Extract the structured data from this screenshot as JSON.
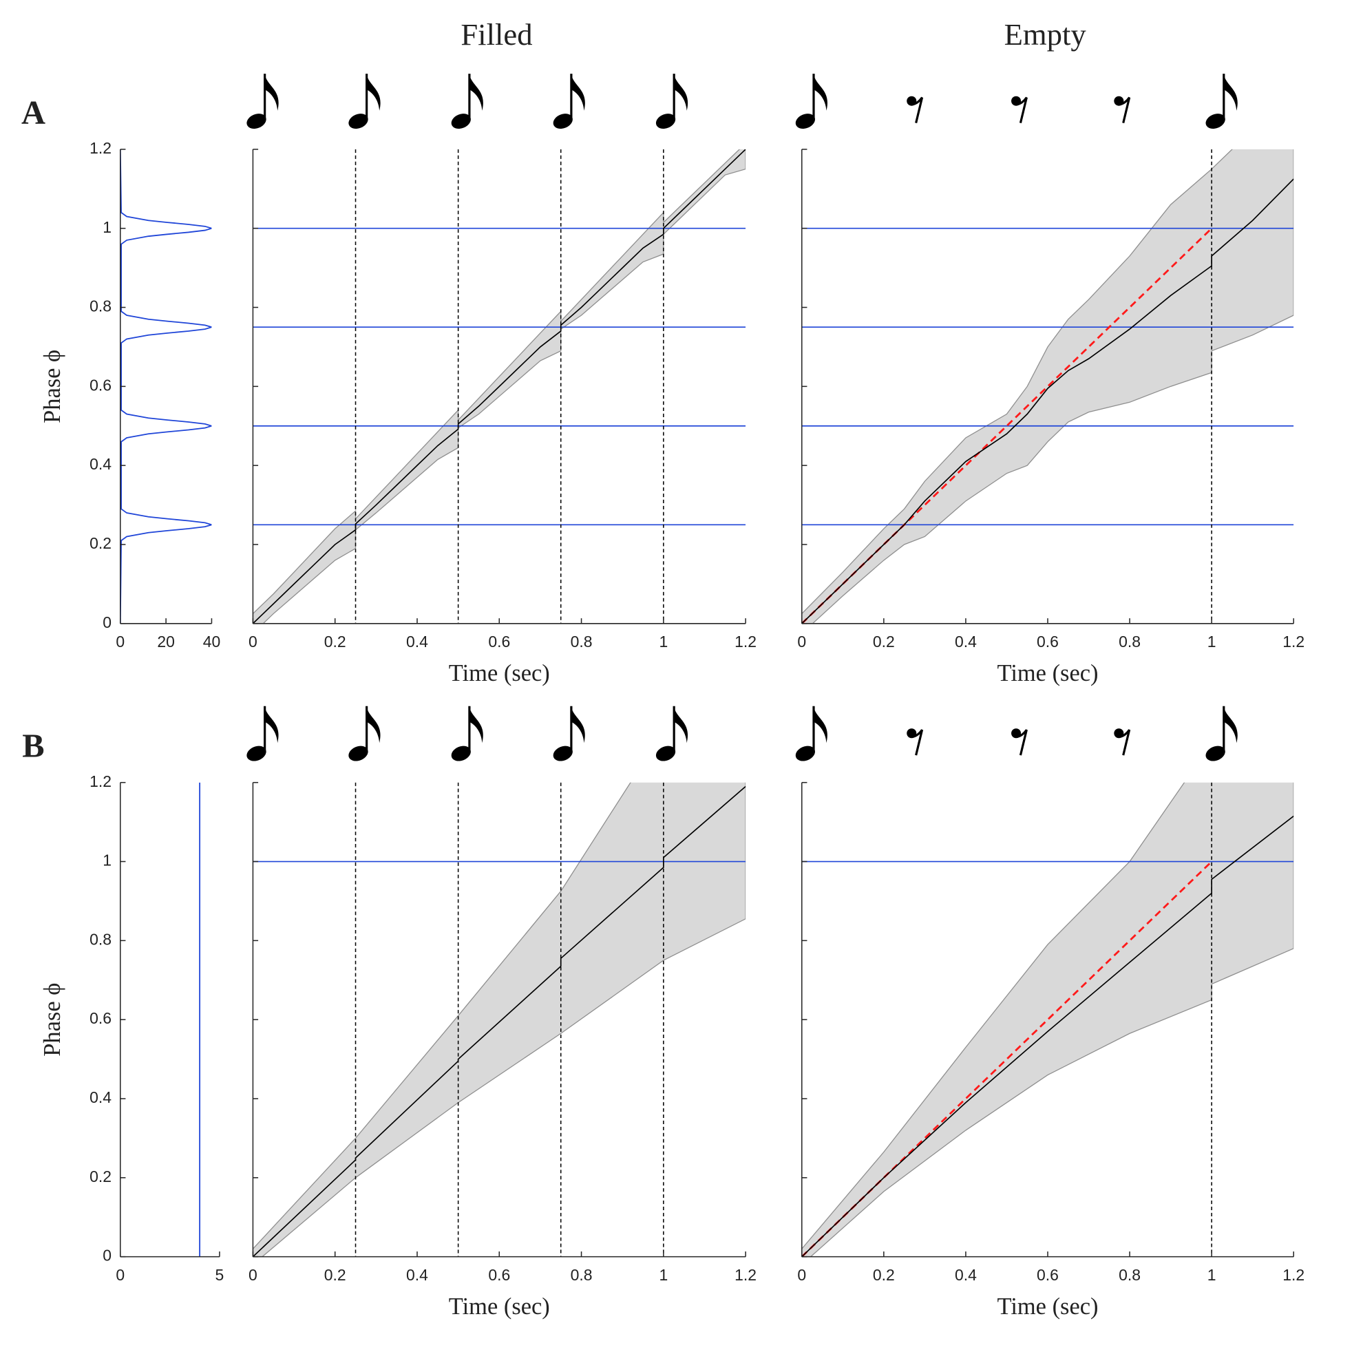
{
  "chart_data": [
    {
      "type": "density",
      "panel_label": "A",
      "ylabel": "Phase ϕ",
      "y": [
        0,
        0.21,
        0.22,
        0.23,
        0.235,
        0.24,
        0.245,
        0.25,
        0.255,
        0.26,
        0.265,
        0.27,
        0.28,
        0.29,
        0.46,
        0.47,
        0.48,
        0.485,
        0.49,
        0.495,
        0.5,
        0.505,
        0.51,
        0.515,
        0.52,
        0.53,
        0.54,
        0.71,
        0.72,
        0.73,
        0.735,
        0.74,
        0.745,
        0.75,
        0.755,
        0.76,
        0.765,
        0.77,
        0.78,
        0.79,
        0.96,
        0.97,
        0.98,
        0.985,
        0.99,
        0.995,
        1,
        1.005,
        1.01,
        1.015,
        1.02,
        1.03,
        1.04,
        1.2
      ],
      "values": [
        0,
        0.4,
        2.8,
        12.3,
        20.6,
        29.8,
        37.1,
        40,
        37.1,
        29.8,
        20.6,
        12.3,
        2.8,
        0.4,
        0.4,
        2.8,
        12.3,
        20.6,
        29.8,
        37.1,
        40,
        37.1,
        29.8,
        20.6,
        12.3,
        2.8,
        0.4,
        0.4,
        2.8,
        12.3,
        20.6,
        29.8,
        37.1,
        40,
        37.1,
        29.8,
        20.6,
        12.3,
        2.8,
        0.4,
        0.4,
        2.8,
        12.3,
        20.6,
        29.8,
        37.1,
        40,
        37.1,
        29.8,
        20.6,
        12.3,
        2.8,
        0.4,
        0
      ],
      "color": "#1f45d8",
      "xlim": [
        0,
        40
      ],
      "xticks": [
        0,
        20,
        40
      ],
      "ylim": [
        0,
        1.2
      ],
      "yticks": [
        0,
        0.2,
        0.4,
        0.6,
        0.8,
        1,
        1.2
      ]
    },
    {
      "type": "band",
      "title": "Filled",
      "xlabel": "Time (sec)",
      "x": [
        0,
        0.05,
        0.1,
        0.15,
        0.2,
        0.25,
        0.25,
        0.3,
        0.35,
        0.4,
        0.45,
        0.5,
        0.5,
        0.55,
        0.6,
        0.65,
        0.7,
        0.75,
        0.75,
        0.8,
        0.85,
        0.9,
        0.95,
        1,
        1,
        1.05,
        1.1,
        1.15,
        1.2
      ],
      "mean": [
        0,
        0.05,
        0.1,
        0.15,
        0.2,
        0.237,
        0.252,
        0.3,
        0.35,
        0.4,
        0.45,
        0.492,
        0.505,
        0.55,
        0.6,
        0.65,
        0.7,
        0.74,
        0.755,
        0.8,
        0.85,
        0.9,
        0.95,
        0.985,
        1,
        1.05,
        1.1,
        1.15,
        1.2
      ],
      "upper": [
        0.025,
        0.075,
        0.13,
        0.185,
        0.24,
        0.285,
        0.265,
        0.32,
        0.375,
        0.43,
        0.485,
        0.54,
        0.515,
        0.57,
        0.625,
        0.68,
        0.735,
        0.79,
        0.765,
        0.82,
        0.875,
        0.93,
        0.985,
        1.04,
        1.015,
        1.065,
        1.115,
        1.165,
        1.215
      ],
      "lower": [
        -0.025,
        0.025,
        0.07,
        0.115,
        0.16,
        0.19,
        0.237,
        0.28,
        0.325,
        0.37,
        0.415,
        0.445,
        0.495,
        0.53,
        0.575,
        0.62,
        0.665,
        0.69,
        0.745,
        0.78,
        0.825,
        0.87,
        0.915,
        0.935,
        0.985,
        1.035,
        1.085,
        1.135,
        1.15
      ],
      "reference_phases": [
        0.25,
        0.5,
        0.75,
        1
      ],
      "event_times": [
        0.25,
        0.5,
        0.75,
        1
      ],
      "color": "#000000",
      "band_color": "#d9d9d9",
      "band_edge": "#8e8e8e",
      "reference_color": "#1f45d8",
      "xlim": [
        0,
        1.2
      ],
      "xticks": [
        0,
        0.2,
        0.4,
        0.6,
        0.8,
        1,
        1.2
      ],
      "ylim": [
        0,
        1.2
      ],
      "yticks": [
        0,
        0.2,
        0.4,
        0.6,
        0.8,
        1,
        1.2
      ],
      "ytick_labels": false
    },
    {
      "type": "band",
      "title": "Empty",
      "xlabel": "Time (sec)",
      "x": [
        0,
        0.1,
        0.2,
        0.25,
        0.3,
        0.4,
        0.5,
        0.55,
        0.6,
        0.65,
        0.7,
        0.8,
        0.9,
        1,
        1,
        1.1,
        1.2
      ],
      "mean": [
        0,
        0.1,
        0.2,
        0.25,
        0.31,
        0.41,
        0.48,
        0.53,
        0.595,
        0.64,
        0.67,
        0.745,
        0.83,
        0.905,
        0.93,
        1.02,
        1.125
      ],
      "upper": [
        0.025,
        0.13,
        0.24,
        0.29,
        0.36,
        0.47,
        0.53,
        0.6,
        0.7,
        0.77,
        0.82,
        0.93,
        1.06,
        1.15,
        1.15,
        1.25,
        1.32
      ],
      "lower": [
        -0.025,
        0.07,
        0.16,
        0.2,
        0.22,
        0.31,
        0.38,
        0.4,
        0.46,
        0.51,
        0.535,
        0.56,
        0.6,
        0.635,
        0.69,
        0.73,
        0.78
      ],
      "reference_phases": [
        0.25,
        0.5,
        0.75,
        1
      ],
      "event_times": [
        1
      ],
      "expected": {
        "x": [
          0,
          1
        ],
        "values": [
          0,
          1
        ],
        "color": "#ff1a1a"
      },
      "color": "#000000",
      "band_color": "#d9d9d9",
      "band_edge": "#8e8e8e",
      "reference_color": "#1f45d8",
      "xlim": [
        0,
        1.2
      ],
      "xticks": [
        0,
        0.2,
        0.4,
        0.6,
        0.8,
        1,
        1.2
      ],
      "ylim": [
        0,
        1.2
      ],
      "yticks": [
        0,
        0.2,
        0.4,
        0.6,
        0.8,
        1,
        1.2
      ],
      "ytick_labels": false
    },
    {
      "type": "density",
      "panel_label": "B",
      "ylabel": "Phase ϕ",
      "y": [
        0,
        1.2
      ],
      "values": [
        4,
        4
      ],
      "color": "#1f45d8",
      "xlim": [
        0,
        5
      ],
      "xticks": [
        0,
        5
      ],
      "ylim": [
        0,
        1.2
      ],
      "yticks": [
        0,
        0.2,
        0.4,
        0.6,
        0.8,
        1,
        1.2
      ]
    },
    {
      "type": "band",
      "xlabel": "Time (sec)",
      "x": [
        0,
        0.25,
        0.25,
        0.5,
        0.5,
        0.75,
        0.75,
        1,
        1,
        1.2
      ],
      "mean": [
        0,
        0.245,
        0.25,
        0.495,
        0.5,
        0.735,
        0.755,
        0.985,
        1.01,
        1.19
      ],
      "upper": [
        0.02,
        0.3,
        0.3,
        0.61,
        0.61,
        0.925,
        0.925,
        1.33,
        1.33,
        1.6
      ],
      "lower": [
        -0.02,
        0.2,
        0.2,
        0.39,
        0.39,
        0.565,
        0.565,
        0.75,
        0.75,
        0.855
      ],
      "reference_phases": [
        1
      ],
      "event_times": [
        0.25,
        0.5,
        0.75,
        1
      ],
      "color": "#000000",
      "band_color": "#d9d9d9",
      "band_edge": "#8e8e8e",
      "reference_color": "#1f45d8",
      "xlim": [
        0,
        1.2
      ],
      "xticks": [
        0,
        0.2,
        0.4,
        0.6,
        0.8,
        1,
        1.2
      ],
      "ylim": [
        0,
        1.2
      ],
      "yticks": [
        0,
        0.2,
        0.4,
        0.6,
        0.8,
        1,
        1.2
      ],
      "ytick_labels": false
    },
    {
      "type": "band",
      "xlabel": "Time (sec)",
      "x": [
        0,
        0.2,
        0.4,
        0.6,
        0.8,
        1,
        1,
        1.2
      ],
      "mean": [
        0,
        0.2,
        0.39,
        0.57,
        0.745,
        0.92,
        0.955,
        1.115
      ],
      "upper": [
        0.02,
        0.265,
        0.53,
        0.79,
        1,
        1.3,
        1.3,
        1.6
      ],
      "lower": [
        -0.02,
        0.165,
        0.32,
        0.46,
        0.565,
        0.65,
        0.69,
        0.78
      ],
      "reference_phases": [
        1
      ],
      "event_times": [
        1
      ],
      "expected": {
        "x": [
          0,
          1
        ],
        "values": [
          0,
          1
        ],
        "color": "#ff1a1a"
      },
      "color": "#000000",
      "band_color": "#d9d9d9",
      "band_edge": "#8e8e8e",
      "reference_color": "#1f45d8",
      "xlim": [
        0,
        1.2
      ],
      "xticks": [
        0,
        0.2,
        0.4,
        0.6,
        0.8,
        1,
        1.2
      ],
      "ylim": [
        0,
        1.2
      ],
      "yticks": [
        0,
        0.2,
        0.4,
        0.6,
        0.8,
        1,
        1.2
      ],
      "ytick_labels": false
    }
  ]
}
